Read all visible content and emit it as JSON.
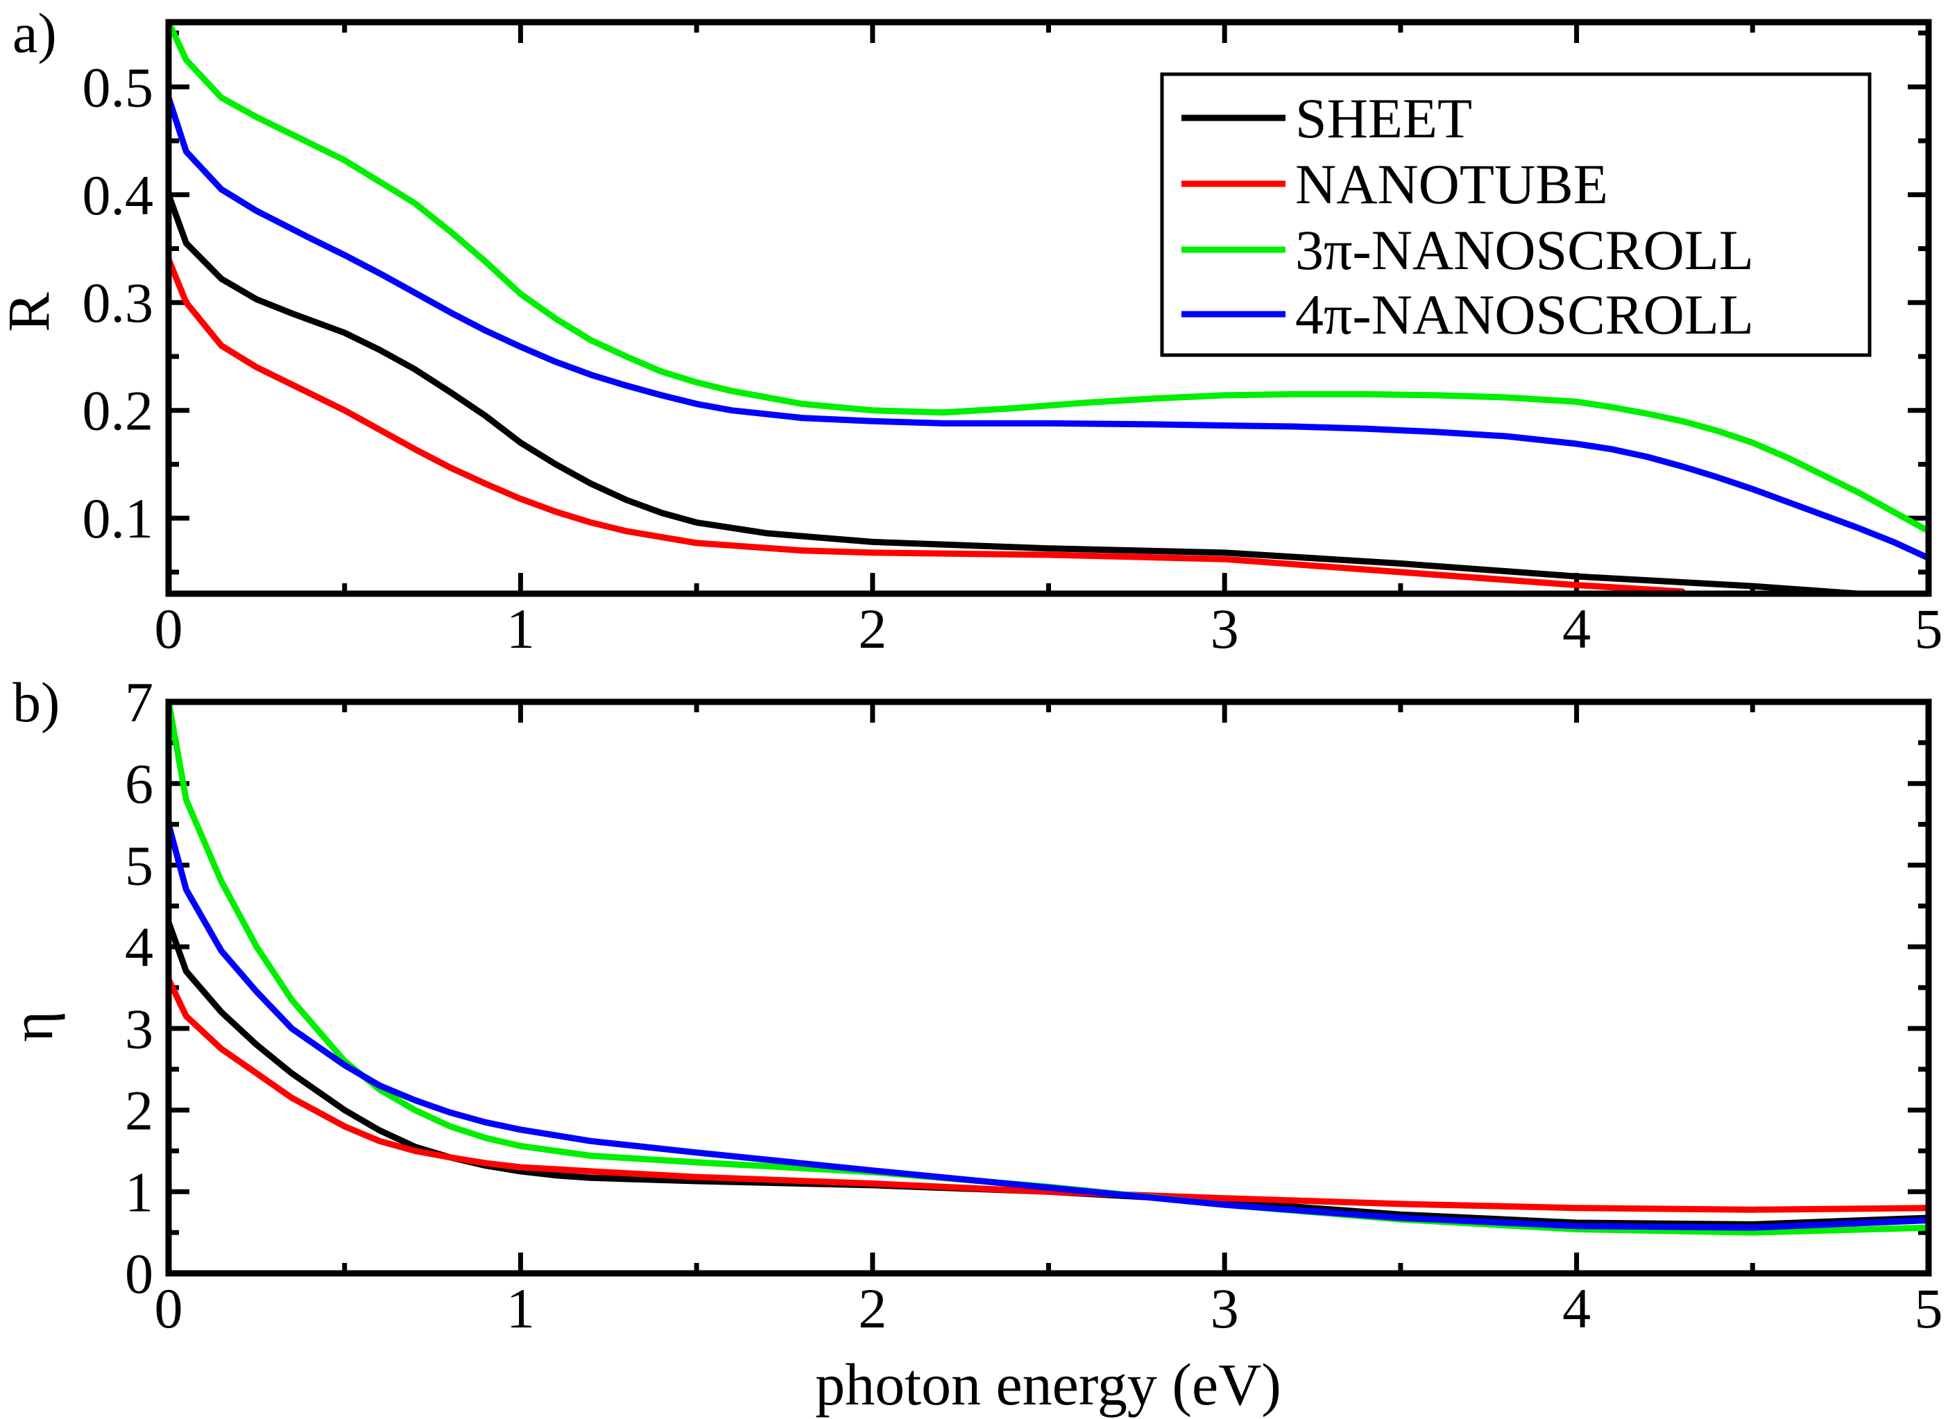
{
  "chart_data": [
    {
      "type": "line",
      "panel_label": "a)",
      "title": "",
      "xlabel": "",
      "ylabel": "R",
      "xlim": [
        0,
        5
      ],
      "ylim": [
        0.03,
        0.56
      ],
      "xticks": [
        0,
        1,
        2,
        3,
        4,
        5
      ],
      "xtick_labels": [
        "0",
        "1",
        "2",
        "3",
        "4",
        "5"
      ],
      "yticks": [
        0.1,
        0.2,
        0.3,
        0.4,
        0.5
      ],
      "ytick_labels": [
        "0.1",
        "0.2",
        "0.3",
        "0.4",
        "0.5"
      ],
      "legend_position": "top-right",
      "series": [
        {
          "name": "SHEET",
          "color": "#000000",
          "x": [
            0,
            0.05,
            0.15,
            0.25,
            0.35,
            0.5,
            0.6,
            0.7,
            0.8,
            0.9,
            1.0,
            1.1,
            1.2,
            1.3,
            1.4,
            1.5,
            1.7,
            2.0,
            2.5,
            3.0,
            3.5,
            4.0,
            4.5,
            4.8
          ],
          "y": [
            0.4,
            0.355,
            0.322,
            0.303,
            0.29,
            0.272,
            0.256,
            0.238,
            0.217,
            0.195,
            0.17,
            0.15,
            0.132,
            0.117,
            0.105,
            0.096,
            0.086,
            0.078,
            0.072,
            0.068,
            0.058,
            0.046,
            0.037,
            0.03
          ]
        },
        {
          "name": "NANOTUBE",
          "color": "#ff0000",
          "x": [
            0,
            0.05,
            0.15,
            0.25,
            0.4,
            0.5,
            0.6,
            0.7,
            0.8,
            0.9,
            1.0,
            1.1,
            1.2,
            1.3,
            1.5,
            1.8,
            2.0,
            2.5,
            3.0,
            3.5,
            4.0,
            4.3
          ],
          "y": [
            0.34,
            0.3,
            0.26,
            0.24,
            0.216,
            0.2,
            0.182,
            0.164,
            0.147,
            0.132,
            0.118,
            0.106,
            0.096,
            0.088,
            0.077,
            0.07,
            0.068,
            0.066,
            0.062,
            0.05,
            0.038,
            0.032
          ]
        },
        {
          "name": "3π-NANOSCROLL",
          "color": "#00ee00",
          "x": [
            0,
            0.05,
            0.15,
            0.25,
            0.35,
            0.5,
            0.6,
            0.7,
            0.8,
            0.9,
            1.0,
            1.1,
            1.2,
            1.3,
            1.4,
            1.5,
            1.6,
            1.8,
            2.0,
            2.2,
            2.4,
            2.6,
            2.8,
            3.0,
            3.2,
            3.4,
            3.6,
            3.8,
            4.0,
            4.1,
            4.2,
            4.3,
            4.4,
            4.5,
            4.6,
            4.7,
            4.8,
            4.9,
            5.0
          ],
          "y": [
            0.56,
            0.525,
            0.49,
            0.472,
            0.456,
            0.432,
            0.412,
            0.392,
            0.366,
            0.338,
            0.308,
            0.285,
            0.265,
            0.25,
            0.236,
            0.226,
            0.218,
            0.206,
            0.2,
            0.198,
            0.202,
            0.207,
            0.211,
            0.214,
            0.215,
            0.215,
            0.214,
            0.212,
            0.208,
            0.203,
            0.197,
            0.19,
            0.181,
            0.17,
            0.156,
            0.14,
            0.124,
            0.106,
            0.088
          ]
        },
        {
          "name": "4π-NANOSCROLL",
          "color": "#0000ff",
          "x": [
            0,
            0.05,
            0.15,
            0.25,
            0.4,
            0.5,
            0.6,
            0.7,
            0.8,
            0.9,
            1.0,
            1.1,
            1.2,
            1.3,
            1.4,
            1.5,
            1.6,
            1.8,
            2.0,
            2.2,
            2.5,
            2.8,
            3.0,
            3.2,
            3.4,
            3.6,
            3.8,
            4.0,
            4.1,
            4.2,
            4.3,
            4.4,
            4.5,
            4.6,
            4.7,
            4.8,
            4.9,
            5.0
          ],
          "y": [
            0.49,
            0.44,
            0.405,
            0.385,
            0.36,
            0.344,
            0.327,
            0.309,
            0.291,
            0.274,
            0.259,
            0.245,
            0.233,
            0.223,
            0.214,
            0.206,
            0.2,
            0.193,
            0.19,
            0.188,
            0.188,
            0.187,
            0.186,
            0.185,
            0.183,
            0.18,
            0.176,
            0.169,
            0.164,
            0.157,
            0.148,
            0.138,
            0.127,
            0.115,
            0.103,
            0.091,
            0.078,
            0.063
          ]
        }
      ]
    },
    {
      "type": "line",
      "panel_label": "b)",
      "title": "",
      "xlabel": "photon energy (eV)",
      "ylabel": "η",
      "xlim": [
        0,
        5
      ],
      "ylim": [
        0,
        7
      ],
      "xticks": [
        0,
        1,
        2,
        3,
        4,
        5
      ],
      "xtick_labels": [
        "0",
        "1",
        "2",
        "3",
        "4",
        "5"
      ],
      "yticks": [
        0,
        1,
        2,
        3,
        4,
        5,
        6,
        7
      ],
      "ytick_labels": [
        "0",
        "1",
        "2",
        "3",
        "4",
        "5",
        "6",
        "7"
      ],
      "series": [
        {
          "name": "SHEET",
          "color": "#000000",
          "x": [
            0,
            0.05,
            0.15,
            0.25,
            0.35,
            0.5,
            0.6,
            0.7,
            0.8,
            0.9,
            1.0,
            1.1,
            1.2,
            1.5,
            2.0,
            2.5,
            3.0,
            3.5,
            4.0,
            4.5,
            5.0
          ],
          "y": [
            4.3,
            3.7,
            3.2,
            2.8,
            2.45,
            2.0,
            1.75,
            1.55,
            1.42,
            1.32,
            1.25,
            1.2,
            1.17,
            1.13,
            1.08,
            1.0,
            0.88,
            0.72,
            0.62,
            0.6,
            0.68
          ]
        },
        {
          "name": "NANOTUBE",
          "color": "#ff0000",
          "x": [
            0,
            0.05,
            0.15,
            0.25,
            0.35,
            0.5,
            0.6,
            0.7,
            0.8,
            0.9,
            1.0,
            1.2,
            1.5,
            2.0,
            2.5,
            3.0,
            3.5,
            4.0,
            4.5,
            5.0
          ],
          "y": [
            3.6,
            3.15,
            2.75,
            2.45,
            2.15,
            1.8,
            1.62,
            1.5,
            1.42,
            1.35,
            1.3,
            1.25,
            1.18,
            1.1,
            1.0,
            0.92,
            0.85,
            0.8,
            0.78,
            0.8
          ]
        },
        {
          "name": "3π-NANOSCROLL",
          "color": "#00ee00",
          "x": [
            0,
            0.05,
            0.15,
            0.25,
            0.35,
            0.5,
            0.6,
            0.7,
            0.8,
            0.9,
            1.0,
            1.2,
            1.5,
            2.0,
            2.5,
            3.0,
            3.5,
            4.0,
            4.5,
            5.0
          ],
          "y": [
            7.0,
            5.8,
            4.8,
            4.0,
            3.35,
            2.6,
            2.25,
            2.0,
            1.8,
            1.66,
            1.56,
            1.44,
            1.36,
            1.24,
            1.06,
            0.84,
            0.66,
            0.54,
            0.5,
            0.56
          ]
        },
        {
          "name": "4π-NANOSCROLL",
          "color": "#0000ff",
          "x": [
            0,
            0.05,
            0.15,
            0.25,
            0.35,
            0.5,
            0.6,
            0.7,
            0.8,
            0.9,
            1.0,
            1.2,
            1.5,
            2.0,
            2.5,
            3.0,
            3.5,
            4.0,
            4.5,
            5.0
          ],
          "y": [
            5.5,
            4.7,
            3.95,
            3.45,
            3.0,
            2.55,
            2.3,
            2.12,
            1.97,
            1.85,
            1.76,
            1.62,
            1.48,
            1.26,
            1.05,
            0.84,
            0.68,
            0.58,
            0.56,
            0.65
          ]
        }
      ]
    }
  ]
}
